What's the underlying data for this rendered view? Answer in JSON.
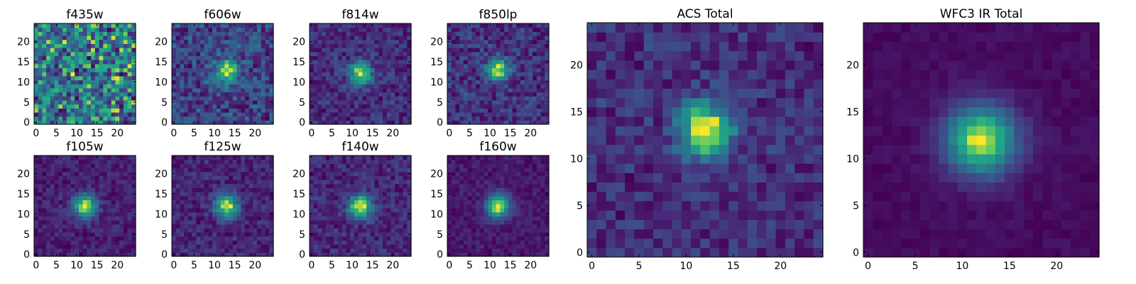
{
  "chart_data": [
    {
      "type": "heatmap",
      "title": "f435w",
      "grid_size": 25,
      "xticks": [
        0,
        5,
        10,
        15,
        20
      ],
      "yticks": [
        0,
        5,
        10,
        15,
        20
      ],
      "peak": [
        12,
        12
      ],
      "peak_strength": 0.0,
      "noise": 0.55,
      "colormap": "viridis",
      "grid": false
    },
    {
      "type": "heatmap",
      "title": "f606w",
      "grid_size": 25,
      "xticks": [
        0,
        5,
        10,
        15,
        20
      ],
      "yticks": [
        0,
        5,
        10,
        15,
        20
      ],
      "peak": [
        13,
        13
      ],
      "peak_strength": 0.55,
      "noise": 0.35,
      "colormap": "viridis",
      "grid": false
    },
    {
      "type": "heatmap",
      "title": "f814w",
      "grid_size": 25,
      "xticks": [
        0,
        5,
        10,
        15,
        20
      ],
      "yticks": [
        0,
        5,
        10,
        15,
        20
      ],
      "peak": [
        12,
        12
      ],
      "peak_strength": 0.75,
      "noise": 0.3,
      "colormap": "viridis",
      "grid": false
    },
    {
      "type": "heatmap",
      "title": "f850lp",
      "grid_size": 25,
      "xticks": [
        0,
        5,
        10,
        15,
        20
      ],
      "yticks": [
        0,
        5,
        10,
        15,
        20
      ],
      "peak": [
        12,
        13
      ],
      "peak_strength": 0.7,
      "noise": 0.35,
      "colormap": "viridis",
      "grid": false
    },
    {
      "type": "heatmap",
      "title": "ACS Total",
      "grid_size": 25,
      "xticks": [
        0,
        5,
        10,
        15,
        20
      ],
      "yticks": [
        0,
        5,
        10,
        15,
        20
      ],
      "peak": [
        12,
        13
      ],
      "peak_strength": 0.8,
      "noise": 0.25,
      "colormap": "viridis",
      "grid": false
    },
    {
      "type": "heatmap",
      "title": "WFC3 IR Total",
      "grid_size": 25,
      "xticks": [
        0,
        5,
        10,
        15,
        20
      ],
      "yticks": [
        0,
        5,
        10,
        15,
        20
      ],
      "peak": [
        12,
        12
      ],
      "peak_strength": 1.0,
      "noise": 0.08,
      "colormap": "viridis",
      "grid": false
    },
    {
      "type": "heatmap",
      "title": "f105w",
      "grid_size": 25,
      "xticks": [
        0,
        5,
        10,
        15,
        20
      ],
      "yticks": [
        0,
        5,
        10,
        15,
        20
      ],
      "peak": [
        12,
        12
      ],
      "peak_strength": 0.85,
      "noise": 0.2,
      "colormap": "viridis",
      "grid": false
    },
    {
      "type": "heatmap",
      "title": "f125w",
      "grid_size": 25,
      "xticks": [
        0,
        5,
        10,
        15,
        20
      ],
      "yticks": [
        0,
        5,
        10,
        15,
        20
      ],
      "peak": [
        13,
        12
      ],
      "peak_strength": 0.8,
      "noise": 0.22,
      "colormap": "viridis",
      "grid": false
    },
    {
      "type": "heatmap",
      "title": "f140w",
      "grid_size": 25,
      "xticks": [
        0,
        5,
        10,
        15,
        20
      ],
      "yticks": [
        0,
        5,
        10,
        15,
        20
      ],
      "peak": [
        12,
        12
      ],
      "peak_strength": 0.8,
      "noise": 0.22,
      "colormap": "viridis",
      "grid": false
    },
    {
      "type": "heatmap",
      "title": "f160w",
      "grid_size": 25,
      "xticks": [
        0,
        5,
        10,
        15,
        20
      ],
      "yticks": [
        0,
        5,
        10,
        15,
        20
      ],
      "peak": [
        12,
        12
      ],
      "peak_strength": 0.9,
      "noise": 0.15,
      "colormap": "viridis",
      "grid": false
    }
  ]
}
